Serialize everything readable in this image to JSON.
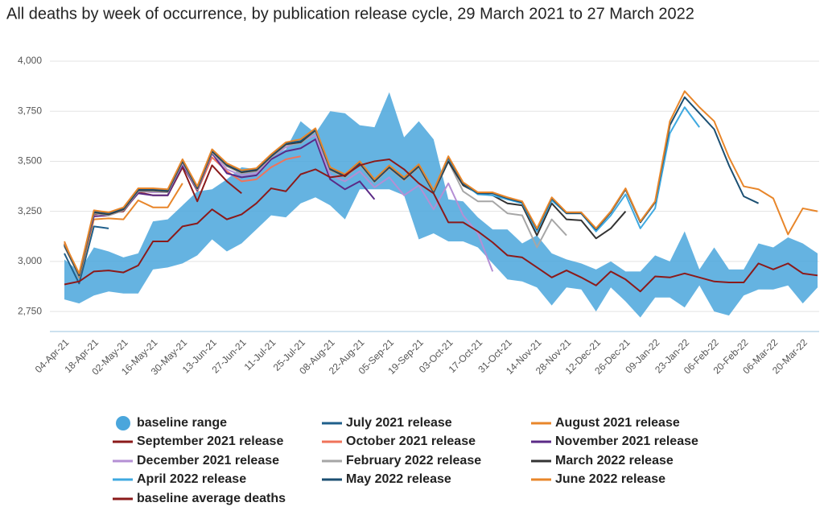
{
  "chart_data": {
    "type": "line",
    "title": "All deaths by week of occurrence, by publication release cycle, 29 March 2021 to 27 March 2022",
    "categories": [
      "04-Apr-21",
      null,
      "18-Apr-21",
      null,
      "02-May-21",
      null,
      "16-May-21",
      null,
      "30-May-21",
      null,
      "13-Jun-21",
      null,
      "27-Jun-21",
      null,
      "11-Jul-21",
      null,
      "25-Jul-21",
      null,
      "08-Aug-21",
      null,
      "22-Aug-21",
      null,
      "05-Sep-21",
      null,
      "19-Sep-21",
      null,
      "03-Oct-21",
      null,
      "17-Oct-21",
      null,
      "31-Oct-21",
      null,
      "14-Nov-21",
      null,
      "28-Nov-21",
      null,
      "12-Dec-21",
      null,
      "26-Dec-21",
      null,
      "09-Jan-22",
      null,
      "23-Jan-22",
      null,
      "06-Feb-22",
      null,
      "20-Feb-22",
      null,
      "06-Mar-22",
      null,
      "20-Mar-22",
      null
    ],
    "ylim": [
      2650,
      4000
    ],
    "yticks": [
      {
        "value": 2750,
        "label": "2,750"
      },
      {
        "value": 3000,
        "label": "3,000"
      },
      {
        "value": 3250,
        "label": "3,250"
      },
      {
        "value": 3500,
        "label": "3,500"
      },
      {
        "value": 3750,
        "label": "3,750"
      },
      {
        "value": 4000,
        "label": "4,000"
      }
    ],
    "grid": true,
    "band": {
      "name": "baseline range",
      "color": "#4aa6dc",
      "upper": [
        3010,
        2950,
        3070,
        3050,
        3020,
        3040,
        3200,
        3210,
        3280,
        3350,
        3360,
        3410,
        3470,
        3460,
        3530,
        3560,
        3700,
        3640,
        3750,
        3740,
        3680,
        3670,
        3845,
        3620,
        3700,
        3610,
        3310,
        3300,
        3220,
        3160,
        3160,
        3090,
        3130,
        3040,
        3010,
        2990,
        2960,
        3000,
        2950,
        2950,
        3030,
        3000,
        3150,
        2960,
        3070,
        2960,
        2960,
        3090,
        3070,
        3120,
        3090,
        3040
      ],
      "lower": [
        2810,
        2790,
        2830,
        2850,
        2840,
        2840,
        2960,
        2970,
        2990,
        3030,
        3110,
        3050,
        3090,
        3160,
        3230,
        3220,
        3290,
        3320,
        3280,
        3210,
        3360,
        3360,
        3360,
        3330,
        3110,
        3140,
        3100,
        3100,
        3070,
        2990,
        2910,
        2900,
        2870,
        2780,
        2870,
        2860,
        2750,
        2870,
        2800,
        2720,
        2820,
        2820,
        2770,
        2880,
        2750,
        2730,
        2830,
        2860,
        2860,
        2880,
        2790,
        2870
      ]
    },
    "series": [
      {
        "name": "July 2021 release",
        "color": "#1f5f8b",
        "values": [
          3040,
          2890,
          3175,
          3165,
          null,
          null,
          null,
          null,
          null,
          null,
          null,
          null,
          null,
          null,
          null,
          null,
          null,
          null,
          null,
          null,
          null,
          null,
          null,
          null,
          null,
          null,
          null,
          null,
          null,
          null,
          null,
          null,
          null,
          null,
          null,
          null,
          null,
          null,
          null,
          null,
          null,
          null,
          null,
          null,
          null,
          null,
          null,
          null,
          null,
          null,
          null,
          null
        ]
      },
      {
        "name": "August 2021 release",
        "color": "#e8862a",
        "values": [
          3100,
          2920,
          3210,
          3215,
          3210,
          3305,
          3270,
          3270,
          3390,
          null,
          null,
          null,
          null,
          null,
          null,
          null,
          null,
          null,
          null,
          null,
          null,
          null,
          null,
          null,
          null,
          null,
          null,
          null,
          null,
          null,
          null,
          null,
          null,
          null,
          null,
          null,
          null,
          null,
          null,
          null,
          null,
          null,
          null,
          null,
          null,
          null,
          null,
          null,
          null,
          null,
          null,
          null
        ]
      },
      {
        "name": "September 2021 release",
        "color": "#8b1a1a",
        "values": [
          3090,
          2925,
          3235,
          3240,
          3250,
          3345,
          3330,
          3330,
          3470,
          3300,
          3480,
          3400,
          3340,
          null,
          null,
          null,
          null,
          null,
          null,
          null,
          null,
          null,
          null,
          null,
          null,
          null,
          null,
          null,
          null,
          null,
          null,
          null,
          null,
          null,
          null,
          null,
          null,
          null,
          null,
          null,
          null,
          null,
          null,
          null,
          null,
          null,
          null,
          null,
          null,
          null,
          null,
          null
        ]
      },
      {
        "name": "October 2021 release",
        "color": "#f0735a",
        "values": [
          3090,
          2930,
          3240,
          3245,
          3260,
          3350,
          3345,
          3345,
          3490,
          3350,
          3520,
          3450,
          3400,
          3410,
          3470,
          3510,
          3525,
          null,
          null,
          null,
          null,
          null,
          null,
          null,
          null,
          null,
          null,
          null,
          null,
          null,
          null,
          null,
          null,
          null,
          null,
          null,
          null,
          null,
          null,
          null,
          null,
          null,
          null,
          null,
          null,
          null,
          null,
          null,
          null,
          null,
          null,
          null
        ]
      },
      {
        "name": "November 2021 release",
        "color": "#5b2a86",
        "values": [
          3085,
          2930,
          3225,
          3230,
          3255,
          3340,
          3330,
          3330,
          3480,
          3355,
          3540,
          3440,
          3420,
          3430,
          3510,
          3550,
          3565,
          3610,
          3410,
          3360,
          3400,
          3310,
          null,
          null,
          null,
          null,
          null,
          null,
          null,
          null,
          null,
          null,
          null,
          null,
          null,
          null,
          null,
          null,
          null,
          null,
          null,
          null,
          null,
          null,
          null,
          null,
          null,
          null,
          null,
          null,
          null,
          null
        ]
      },
      {
        "name": "December 2021 release",
        "color": "#b48fd4",
        "values": [
          3090,
          2935,
          3240,
          3240,
          3265,
          3350,
          3345,
          3345,
          3490,
          3360,
          3545,
          3460,
          3430,
          3440,
          3520,
          3570,
          3600,
          3630,
          3430,
          3400,
          3450,
          3370,
          3420,
          3330,
          3380,
          3260,
          3390,
          3230,
          3140,
          2950,
          null,
          null,
          null,
          null,
          null,
          null,
          null,
          null,
          null,
          null,
          null,
          null,
          null,
          null,
          null,
          null,
          null,
          null,
          null,
          null,
          null,
          null
        ]
      },
      {
        "name": "February 2022 release",
        "color": "#a6a6a6",
        "values": [
          3075,
          2925,
          3240,
          3230,
          3255,
          3350,
          3350,
          3345,
          3495,
          3360,
          3545,
          3475,
          3440,
          3450,
          3520,
          3580,
          3590,
          3650,
          3455,
          3420,
          3485,
          3395,
          3465,
          3405,
          3470,
          3340,
          3500,
          3350,
          3300,
          3300,
          3240,
          3230,
          3070,
          3210,
          3130,
          null,
          null,
          null,
          null,
          null,
          null,
          null,
          null,
          null,
          null,
          null,
          null,
          null,
          null,
          null,
          null,
          null
        ]
      },
      {
        "name": "March 2022 release",
        "color": "#333333",
        "values": [
          3080,
          2930,
          3245,
          3235,
          3260,
          3355,
          3355,
          3350,
          3500,
          3365,
          3550,
          3480,
          3445,
          3455,
          3525,
          3585,
          3595,
          3655,
          3460,
          3425,
          3490,
          3400,
          3470,
          3410,
          3475,
          3345,
          3500,
          3380,
          3340,
          3330,
          3290,
          3280,
          3130,
          3290,
          3210,
          3205,
          3115,
          3165,
          3250,
          null,
          null,
          null,
          null,
          null,
          null,
          null,
          null,
          null,
          null,
          null,
          null,
          null
        ]
      },
      {
        "name": "April 2022 release",
        "color": "#3fa9e0",
        "values": [
          3085,
          2935,
          3250,
          3240,
          3265,
          3360,
          3360,
          3355,
          3505,
          3370,
          3555,
          3485,
          3450,
          3460,
          3530,
          3590,
          3600,
          3660,
          3465,
          3430,
          3495,
          3405,
          3475,
          3415,
          3480,
          3350,
          3515,
          3390,
          3335,
          3330,
          3310,
          3290,
          3150,
          3305,
          3240,
          3240,
          3150,
          3230,
          3335,
          3165,
          3265,
          3640,
          3770,
          3670,
          null,
          null,
          null,
          null,
          null,
          null,
          null,
          null
        ]
      },
      {
        "name": "May 2022 release",
        "color": "#1b4f72",
        "values": [
          3085,
          2935,
          3250,
          3240,
          3265,
          3360,
          3360,
          3355,
          3505,
          3370,
          3555,
          3485,
          3450,
          3460,
          3530,
          3590,
          3600,
          3660,
          3465,
          3430,
          3495,
          3405,
          3475,
          3415,
          3480,
          3350,
          3520,
          3390,
          3340,
          3340,
          3315,
          3295,
          3160,
          3315,
          3240,
          3240,
          3160,
          3245,
          3360,
          3195,
          3295,
          3680,
          3820,
          3740,
          3660,
          3480,
          3325,
          3290,
          null,
          null,
          null,
          null
        ]
      },
      {
        "name": "June 2022 release",
        "color": "#e8862a",
        "values": [
          3090,
          2940,
          3255,
          3245,
          3270,
          3365,
          3365,
          3360,
          3510,
          3375,
          3560,
          3490,
          3455,
          3465,
          3535,
          3595,
          3610,
          3665,
          3470,
          3435,
          3500,
          3410,
          3480,
          3420,
          3485,
          3355,
          3525,
          3395,
          3345,
          3345,
          3320,
          3300,
          3165,
          3320,
          3245,
          3245,
          3165,
          3250,
          3365,
          3200,
          3300,
          3700,
          3850,
          3770,
          3700,
          3520,
          3375,
          3360,
          3315,
          3135,
          3265,
          3250
        ]
      },
      {
        "name": "baseline average deaths",
        "color": "#8b1a1a",
        "values": [
          2885,
          2900,
          2950,
          2955,
          2945,
          2980,
          3100,
          3100,
          3175,
          3190,
          3260,
          3210,
          3235,
          3290,
          3365,
          3350,
          3435,
          3460,
          3420,
          3430,
          3480,
          3500,
          3510,
          3460,
          3390,
          3340,
          3195,
          3195,
          3150,
          3095,
          3030,
          3020,
          2970,
          2920,
          2955,
          2920,
          2880,
          2950,
          2910,
          2850,
          2925,
          2920,
          2940,
          2920,
          2900,
          2895,
          2895,
          2990,
          2960,
          2990,
          2940,
          2930
        ]
      }
    ]
  }
}
